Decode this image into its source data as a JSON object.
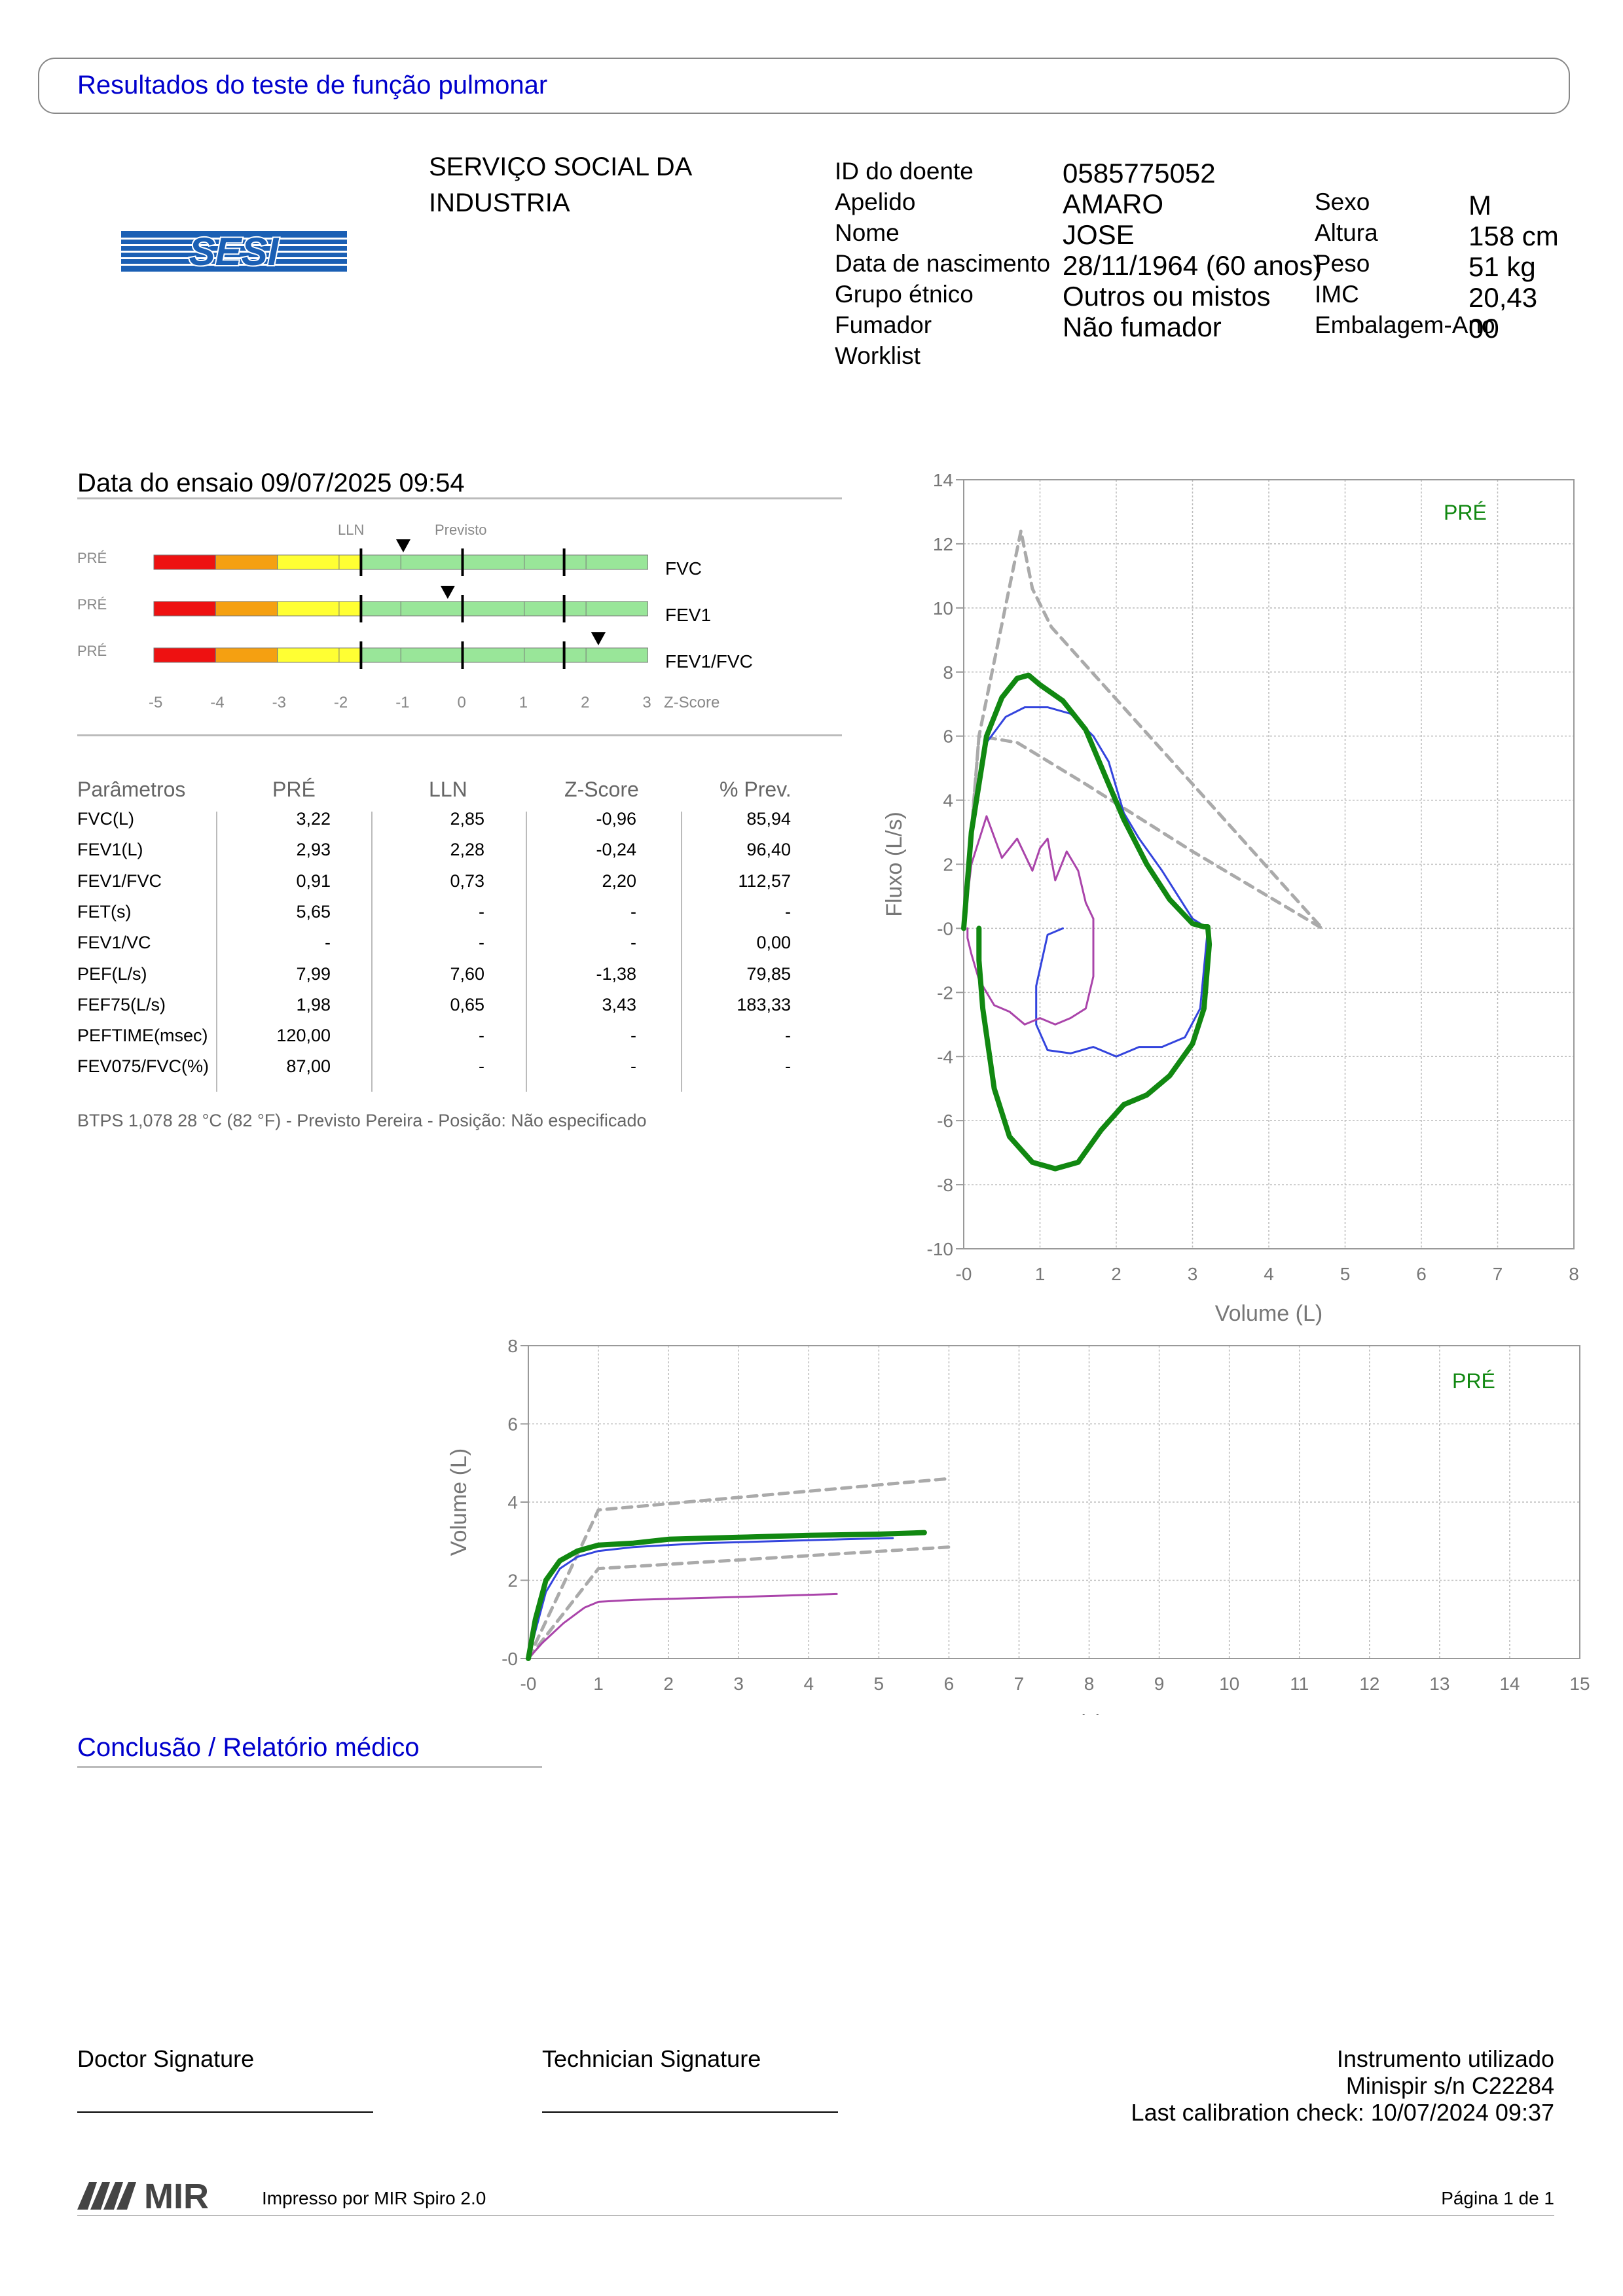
{
  "header": {
    "title": "Resultados do teste de função pulmonar"
  },
  "logo": {
    "text": "SESI"
  },
  "organization": {
    "line1": "SERVIÇO SOCIAL DA",
    "line2": "INDUSTRIA"
  },
  "patient": {
    "left": [
      {
        "label": "ID do doente",
        "value": "0585775052"
      },
      {
        "label": "Apelido",
        "value": "AMARO"
      },
      {
        "label": "Nome",
        "value": "JOSE"
      },
      {
        "label": "Data de nascimento",
        "value": "28/11/1964 (60 anos)"
      },
      {
        "label": "Grupo étnico",
        "value": "Outros ou mistos"
      },
      {
        "label": "Fumador",
        "value": "Não fumador"
      },
      {
        "label": "Worklist",
        "value": ""
      }
    ],
    "right": [
      {
        "label": "Sexo",
        "value": "M"
      },
      {
        "label": "Altura",
        "value": "158 cm"
      },
      {
        "label": "Peso",
        "value": "51 kg"
      },
      {
        "label": "IMC",
        "value": "20,43"
      },
      {
        "label": "Embalagem-Ano",
        "value": "00"
      }
    ]
  },
  "test": {
    "date_label": "Data do ensaio 09/07/2025 09:54"
  },
  "zscore": {
    "lln_label": "LLN",
    "pred_label": "Previsto",
    "axis_label": "Z-Score",
    "ticks": [
      "-5",
      "-4",
      "-3",
      "-2",
      "-1",
      "0",
      "1",
      "2",
      "3"
    ],
    "rows": [
      {
        "tag": "PRÉ",
        "name": "FVC",
        "z": -0.96
      },
      {
        "tag": "PRÉ",
        "name": "FEV1",
        "z": -0.24
      },
      {
        "tag": "PRÉ",
        "name": "FEV1/FVC",
        "z": 2.2
      }
    ],
    "colors": {
      "red": "#ee1111",
      "orange": "#f5a011",
      "yellow": "#ffff33",
      "green": "#99e699"
    }
  },
  "params": {
    "headers": [
      "Parâmetros",
      "PRÉ",
      "LLN",
      "Z-Score",
      "% Prev."
    ],
    "rows": [
      [
        "FVC(L)",
        "3,22",
        "2,85",
        "-0,96",
        "85,94"
      ],
      [
        "FEV1(L)",
        "2,93",
        "2,28",
        "-0,24",
        "96,40"
      ],
      [
        "FEV1/FVC",
        "0,91",
        "0,73",
        "2,20",
        "112,57"
      ],
      [
        "FET(s)",
        "5,65",
        "-",
        "-",
        "-"
      ],
      [
        "FEV1/VC",
        "-",
        "-",
        "-",
        "0,00"
      ],
      [
        "PEF(L/s)",
        "7,99",
        "7,60",
        "-1,38",
        "79,85"
      ],
      [
        "FEF75(L/s)",
        "1,98",
        "0,65",
        "3,43",
        "183,33"
      ],
      [
        "PEFTIME(msec)",
        "120,00",
        "-",
        "-",
        "-"
      ],
      [
        "FEV075/FVC(%)",
        "87,00",
        "-",
        "-",
        "-"
      ]
    ]
  },
  "btps": {
    "text": "BTPS 1,078 28 °C (82 °F) - Previsto Pereira - Posição: Não especificado"
  },
  "chart_data": [
    {
      "type": "line",
      "xlabel": "Volume (L)",
      "ylabel": "Fluxo (L/s)",
      "xlim": [
        0,
        8
      ],
      "ylim": [
        -10,
        14
      ],
      "xticks": [
        "-0",
        "1",
        "2",
        "3",
        "4",
        "5",
        "6",
        "7",
        "8"
      ],
      "yticks": [
        "14",
        "12",
        "10",
        "8",
        "6",
        "4",
        "2",
        "-0",
        "-2",
        "-4",
        "-6",
        "-8",
        "-10"
      ],
      "legend": "PRÉ",
      "series": [
        {
          "color": "#aaaaaa",
          "style": "dashed",
          "x": [
            0,
            0.2,
            0.75,
            0.9,
            1.15,
            4.7,
            3,
            1.6,
            0.7,
            0.2,
            0
          ],
          "y": [
            0,
            6,
            12.4,
            10.6,
            9.4,
            0,
            2.4,
            4.5,
            5.8,
            6,
            0
          ]
        },
        {
          "color": "#3344dd",
          "style": "solid",
          "x": [
            0,
            0.1,
            0.3,
            0.55,
            0.8,
            1.1,
            1.4,
            1.7,
            1.9,
            2.1,
            2.3,
            2.6,
            3,
            3.2,
            3.1,
            2.9,
            2.6,
            2.3,
            2,
            1.7,
            1.4,
            1.1,
            0.95,
            0.95,
            1.1,
            1.3
          ],
          "y": [
            0,
            3.2,
            5.8,
            6.6,
            6.9,
            6.9,
            6.7,
            6,
            5.2,
            3.6,
            2.8,
            1.8,
            0.3,
            0,
            -2.5,
            -3.4,
            -3.7,
            -3.7,
            -4,
            -3.7,
            -3.9,
            -3.8,
            -3,
            -1.8,
            -0.2,
            0
          ]
        },
        {
          "color": "#aa44aa",
          "style": "solid",
          "x": [
            0,
            0.1,
            0.3,
            0.5,
            0.7,
            0.9,
            1.0,
            1.1,
            1.2,
            1.35,
            1.5,
            1.6,
            1.7,
            1.7,
            1.6,
            1.4,
            1.2,
            1.0,
            0.8,
            0.6,
            0.4,
            0.2,
            0.1,
            0.05,
            0.05
          ],
          "y": [
            0,
            2,
            3.5,
            2.2,
            2.8,
            1.8,
            2.5,
            2.8,
            1.5,
            2.4,
            1.8,
            0.8,
            0.3,
            -1.5,
            -2.5,
            -2.8,
            -3.0,
            -2.8,
            -3.0,
            -2.6,
            -2.4,
            -1.6,
            -0.8,
            -0.3,
            0
          ]
        },
        {
          "color": "#118811",
          "style": "bold",
          "x": [
            0,
            0.1,
            0.3,
            0.5,
            0.7,
            0.85,
            1.0,
            1.3,
            1.6,
            1.9,
            2.1,
            2.4,
            2.7,
            3,
            3.15,
            3.2,
            3.22,
            3.15,
            3.0,
            2.7,
            2.4,
            2.1,
            1.8,
            1.5,
            1.2,
            0.9,
            0.6,
            0.4,
            0.25,
            0.2,
            0.2
          ],
          "y": [
            0,
            3,
            6,
            7.2,
            7.8,
            7.9,
            7.6,
            7.1,
            6.2,
            4.5,
            3.4,
            2,
            0.9,
            0.15,
            0.05,
            0.05,
            -0.5,
            -2.5,
            -3.6,
            -4.6,
            -5.2,
            -5.5,
            -6.3,
            -7.3,
            -7.5,
            -7.3,
            -6.5,
            -5,
            -2.5,
            -1,
            0
          ]
        }
      ]
    },
    {
      "type": "line",
      "xlabel": "Tempo (s)",
      "ylabel": "Volume (L)",
      "xlim": [
        0,
        15
      ],
      "ylim": [
        0,
        8
      ],
      "xticks": [
        "-0",
        "1",
        "2",
        "3",
        "4",
        "5",
        "6",
        "7",
        "8",
        "9",
        "10",
        "11",
        "12",
        "13",
        "14",
        "15"
      ],
      "yticks": [
        "8",
        "6",
        "4",
        "2",
        "-0"
      ],
      "legend": "PRÉ",
      "series": [
        {
          "color": "#aaaaaa",
          "style": "dashed",
          "x": [
            0,
            1,
            6
          ],
          "y": [
            0,
            3.8,
            4.6
          ]
        },
        {
          "color": "#aaaaaa",
          "style": "dashed",
          "x": [
            0,
            1,
            6
          ],
          "y": [
            0,
            2.3,
            2.85
          ]
        },
        {
          "color": "#3344dd",
          "style": "solid",
          "x": [
            0,
            0.1,
            0.25,
            0.45,
            0.7,
            1.0,
            1.5,
            2.5,
            3.5,
            4.5,
            5.2
          ],
          "y": [
            0,
            0.7,
            1.7,
            2.3,
            2.6,
            2.75,
            2.85,
            2.95,
            3.0,
            3.05,
            3.08
          ]
        },
        {
          "color": "#aa44aa",
          "style": "solid",
          "x": [
            0,
            0.2,
            0.5,
            0.8,
            1.0,
            1.5,
            2.5,
            3.5,
            4.4
          ],
          "y": [
            0,
            0.4,
            0.9,
            1.3,
            1.45,
            1.5,
            1.55,
            1.6,
            1.65
          ]
        },
        {
          "color": "#118811",
          "style": "bold",
          "x": [
            0,
            0.1,
            0.25,
            0.45,
            0.7,
            1.0,
            1.5,
            2.0,
            3.0,
            4.0,
            5.0,
            5.65
          ],
          "y": [
            0,
            1.0,
            2.0,
            2.5,
            2.75,
            2.9,
            2.95,
            3.05,
            3.1,
            3.15,
            3.18,
            3.22
          ]
        }
      ]
    }
  ],
  "conclusion": {
    "title": "Conclusão / Relatório médico"
  },
  "signatures": {
    "doctor": "Doctor Signature",
    "technician": "Technician Signature"
  },
  "instrument": {
    "line1": "Instrumento utilizado",
    "line2": "Minispir s/n C22284",
    "line3": "Last calibration check: 10/07/2024 09:37"
  },
  "footer": {
    "brand": "MIR",
    "printed": "Impresso por MIR Spiro 2.0",
    "page": "Página 1 de 1"
  }
}
